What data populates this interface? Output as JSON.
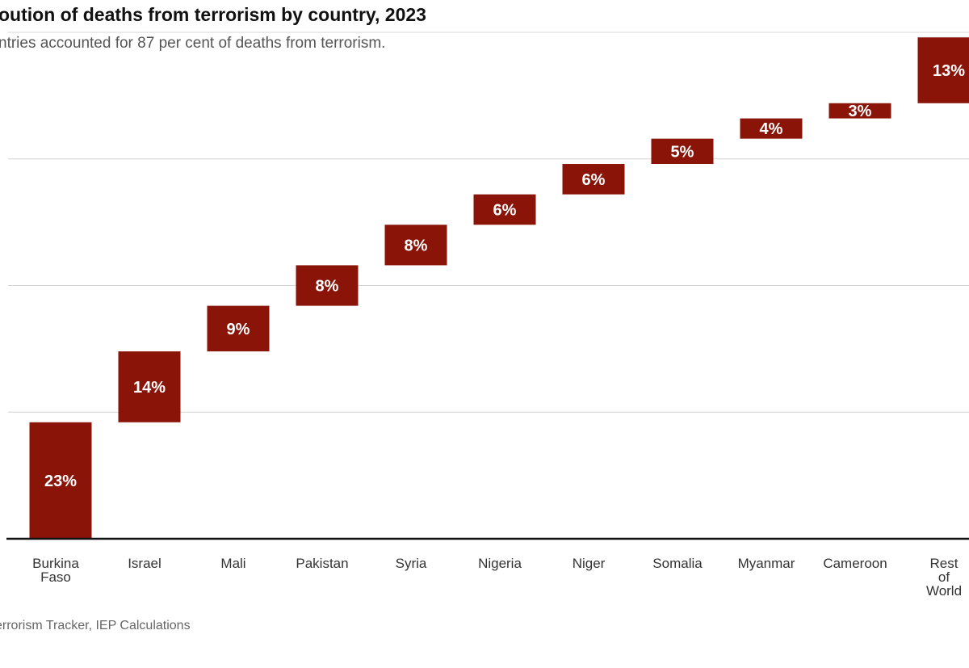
{
  "title": "oution of deaths from terrorism by country, 2023",
  "subtitle": "ntries accounted for 87 per cent of deaths from terrorism.",
  "source": "errorism Tracker, IEP Calculations",
  "colors": {
    "bar": "#8b1408",
    "grid": "#d4d4d4",
    "axis": "#111111"
  },
  "chart_data": {
    "type": "bar",
    "subtype": "waterfall",
    "categories": [
      "Burkina Faso",
      "Israel",
      "Mali",
      "Pakistan",
      "Syria",
      "Nigeria",
      "Niger",
      "Somalia",
      "Myanmar",
      "Cameroon",
      "Rest of World"
    ],
    "tick_lines": [
      [
        "Burkina",
        "Faso"
      ],
      [
        "Israel"
      ],
      [
        "Mali"
      ],
      [
        "Pakistan"
      ],
      [
        "Syria"
      ],
      [
        "Nigeria"
      ],
      [
        "Niger"
      ],
      [
        "Somalia"
      ],
      [
        "Myanmar"
      ],
      [
        "Cameroon"
      ],
      [
        "Rest",
        "of",
        "World"
      ]
    ],
    "values": [
      23,
      14,
      9,
      8,
      8,
      6,
      6,
      5,
      4,
      3,
      13
    ],
    "labels": [
      "23%",
      "14%",
      "9%",
      "8%",
      "8%",
      "6%",
      "6%",
      "5%",
      "4%",
      "3%",
      "13%"
    ],
    "ylim": [
      0,
      100
    ],
    "grid": true,
    "legend": "none"
  }
}
